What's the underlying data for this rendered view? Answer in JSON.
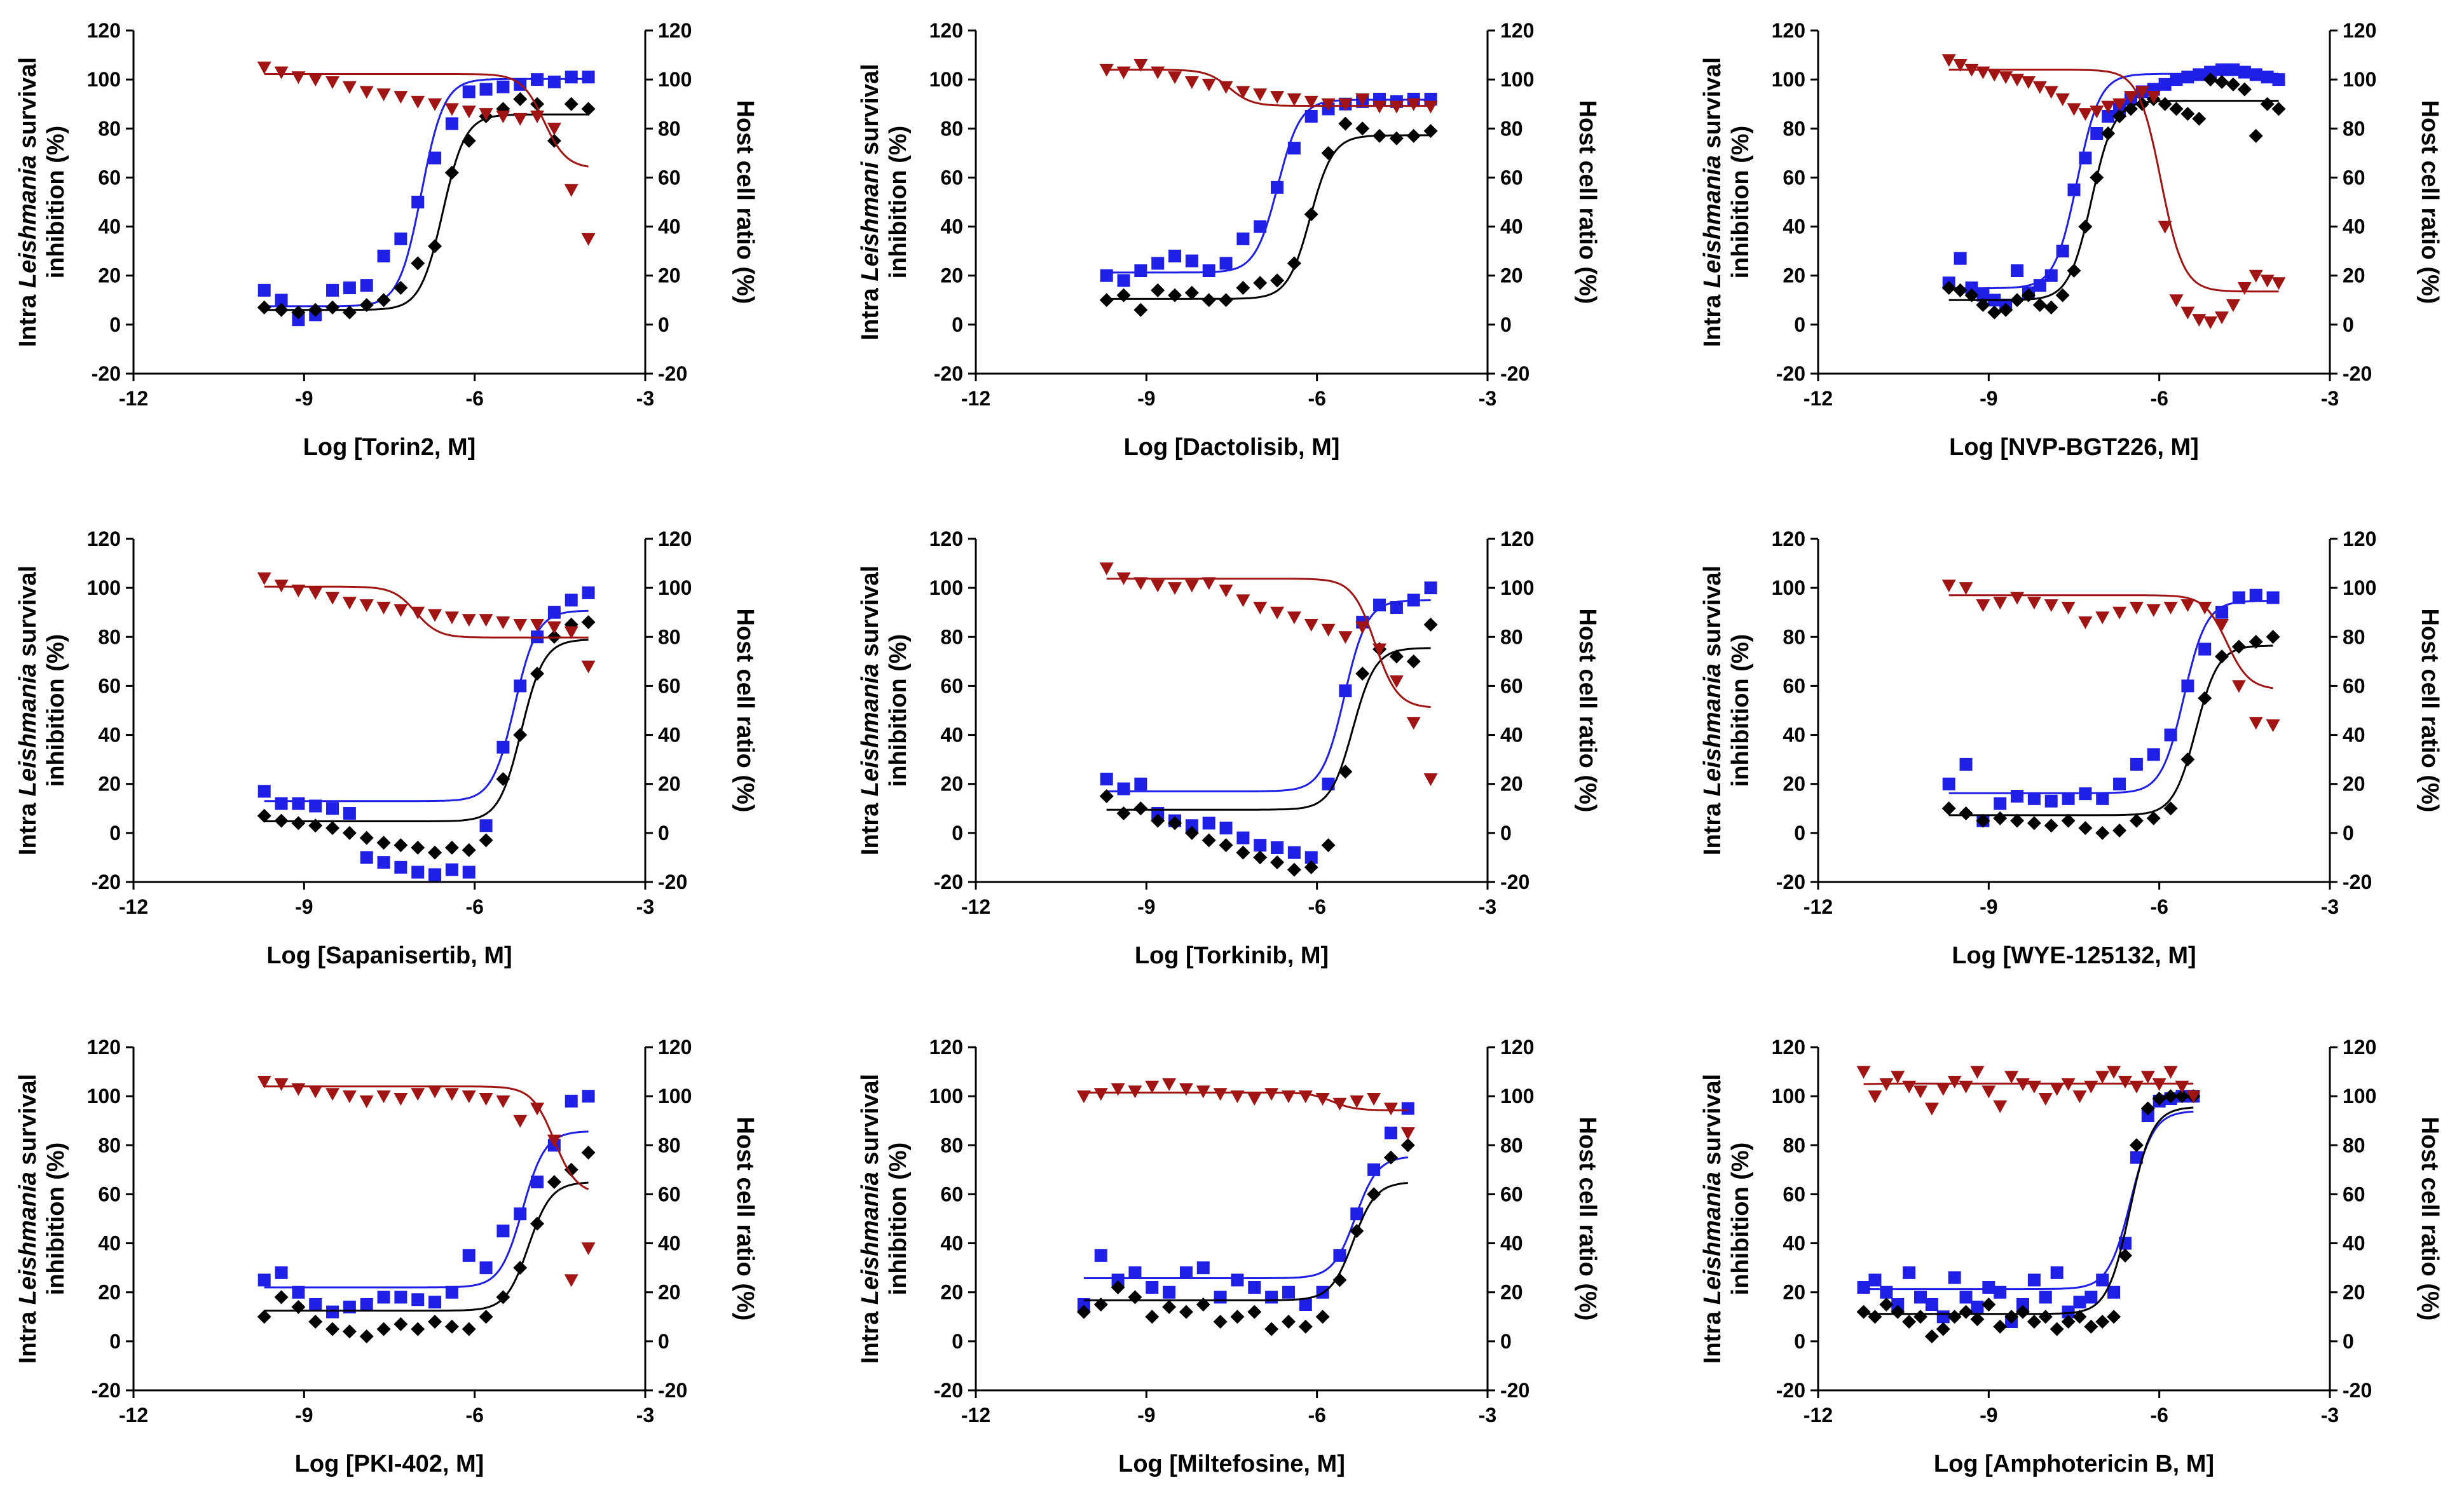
{
  "figure": {
    "colors": {
      "blue": "#1f1fe6",
      "black": "#000000",
      "red": "#a01414"
    },
    "left_axis": {
      "label_prefix": "Intra ",
      "label_italic": "Leishmania",
      "label_suffix": " survival",
      "label_line2": "inhibition (%)",
      "label_line2_alt": "Intra Leishmani survival"
    },
    "right_axis": {
      "label": "Host cell ratio (%)"
    },
    "x_ticks": [
      "-12",
      "-9",
      "-6",
      "-3"
    ],
    "y_ticks": [
      "-20",
      "0",
      "20",
      "40",
      "60",
      "80",
      "100",
      "120"
    ]
  },
  "chart_data": [
    {
      "type": "scatter",
      "xlabel": "Log [Torin2, M]",
      "ylabel": "Intra Leishmania survival inhibition (%)",
      "y2label": "Host cell ratio (%)",
      "xlim": [
        -12,
        -3
      ],
      "ylim": [
        -20,
        120
      ],
      "y2lim": [
        -20,
        120
      ],
      "x": [
        -9.7,
        -9.4,
        -9.1,
        -8.8,
        -8.5,
        -8.2,
        -7.9,
        -7.6,
        -7.3,
        -7.0,
        -6.7,
        -6.4,
        -6.1,
        -5.8,
        -5.5,
        -5.2,
        -4.9,
        -4.6,
        -4.3,
        -4.0
      ],
      "series": [
        {
          "color": "blue",
          "axis": "left",
          "values": [
            14,
            10,
            2,
            4,
            14,
            15,
            16,
            28,
            35,
            50,
            68,
            82,
            95,
            96,
            97,
            98,
            100,
            99,
            101,
            101
          ]
        },
        {
          "color": "black",
          "axis": "left",
          "values": [
            7,
            6,
            5,
            6,
            7,
            5,
            8,
            10,
            15,
            25,
            32,
            62,
            75,
            85,
            88,
            92,
            90,
            75,
            90,
            88
          ]
        },
        {
          "color": "red",
          "axis": "right",
          "values": [
            105,
            103,
            101,
            100,
            99,
            97,
            95,
            94,
            93,
            91,
            90,
            88,
            87,
            86,
            85,
            84,
            85,
            80,
            55,
            35
          ]
        }
      ]
    },
    {
      "type": "scatter",
      "xlabel": "Log [Dactolisib, M]",
      "ylabel": "Intra Leishmani survival inhibition (%)",
      "y2label": "Host cell ratio (%)",
      "xlim": [
        -12,
        -3
      ],
      "ylim": [
        -20,
        120
      ],
      "y2lim": [
        -20,
        120
      ],
      "x": [
        -9.7,
        -9.4,
        -9.1,
        -8.8,
        -8.5,
        -8.2,
        -7.9,
        -7.6,
        -7.3,
        -7.0,
        -6.7,
        -6.4,
        -6.1,
        -5.8,
        -5.5,
        -5.2,
        -4.9,
        -4.6,
        -4.3,
        -4.0
      ],
      "series": [
        {
          "color": "blue",
          "axis": "left",
          "values": [
            20,
            18,
            22,
            25,
            28,
            26,
            22,
            25,
            35,
            40,
            56,
            72,
            85,
            88,
            90,
            91,
            92,
            91,
            92,
            92
          ]
        },
        {
          "color": "black",
          "axis": "left",
          "values": [
            10,
            12,
            6,
            14,
            12,
            13,
            10,
            10,
            15,
            17,
            18,
            25,
            45,
            70,
            82,
            80,
            77,
            76,
            77,
            79
          ]
        },
        {
          "color": "red",
          "axis": "right",
          "values": [
            104,
            103,
            106,
            103,
            101,
            99,
            98,
            97,
            95,
            94,
            93,
            92,
            91,
            90,
            90,
            92,
            89,
            89,
            90,
            89
          ]
        }
      ]
    },
    {
      "type": "scatter",
      "xlabel": "Log [NVP-BGT226, M]",
      "ylabel": "Intra Leishmania survival inhibition (%)",
      "y2label": "Host cell ratio (%)",
      "xlim": [
        -12,
        -3
      ],
      "ylim": [
        -20,
        120
      ],
      "y2lim": [
        -20,
        120
      ],
      "x": [
        -9.7,
        -9.5,
        -9.3,
        -9.1,
        -8.9,
        -8.7,
        -8.5,
        -8.3,
        -8.1,
        -7.9,
        -7.7,
        -7.5,
        -7.3,
        -7.1,
        -6.9,
        -6.7,
        -6.5,
        -6.3,
        -6.1,
        -5.9,
        -5.7,
        -5.5,
        -5.3,
        -5.1,
        -4.9,
        -4.7,
        -4.5,
        -4.3,
        -4.1,
        -3.9
      ],
      "series": [
        {
          "color": "blue",
          "axis": "left",
          "values": [
            17,
            27,
            15,
            12,
            10,
            8,
            22,
            13,
            16,
            20,
            30,
            55,
            68,
            78,
            85,
            88,
            92,
            95,
            96,
            98,
            100,
            101,
            102,
            103,
            104,
            104,
            103,
            102,
            101,
            100
          ]
        },
        {
          "color": "black",
          "axis": "left",
          "values": [
            15,
            14,
            12,
            8,
            5,
            6,
            10,
            12,
            8,
            7,
            12,
            22,
            40,
            60,
            78,
            85,
            88,
            90,
            92,
            90,
            88,
            86,
            84,
            100,
            99,
            98,
            96,
            77,
            90,
            88
          ]
        },
        {
          "color": "red",
          "axis": "right",
          "values": [
            108,
            106,
            104,
            103,
            102,
            101,
            100,
            99,
            97,
            95,
            92,
            88,
            86,
            87,
            89,
            90,
            93,
            95,
            93,
            40,
            10,
            5,
            2,
            1,
            3,
            8,
            15,
            20,
            18,
            17
          ]
        }
      ]
    },
    {
      "type": "scatter",
      "xlabel": "Log [Sapanisertib, M]",
      "ylabel": "Intra Leishmania survival inhibition (%)",
      "y2label": "Host cell ratio (%)",
      "xlim": [
        -12,
        -3
      ],
      "ylim": [
        -20,
        120
      ],
      "y2lim": [
        -20,
        120
      ],
      "x": [
        -9.7,
        -9.4,
        -9.1,
        -8.8,
        -8.5,
        -8.2,
        -7.9,
        -7.6,
        -7.3,
        -7.0,
        -6.7,
        -6.4,
        -6.1,
        -5.8,
        -5.5,
        -5.2,
        -4.9,
        -4.6,
        -4.3,
        -4.0
      ],
      "series": [
        {
          "color": "blue",
          "axis": "left",
          "values": [
            17,
            12,
            12,
            11,
            10,
            8,
            -10,
            -12,
            -14,
            -16,
            -17,
            -15,
            -16,
            3,
            35,
            60,
            80,
            90,
            95,
            98
          ]
        },
        {
          "color": "black",
          "axis": "left",
          "values": [
            7,
            5,
            4,
            3,
            2,
            0,
            -2,
            -4,
            -5,
            -6,
            -8,
            -6,
            -7,
            -3,
            22,
            40,
            65,
            80,
            85,
            86
          ]
        },
        {
          "color": "red",
          "axis": "right",
          "values": [
            104,
            101,
            99,
            98,
            96,
            94,
            93,
            92,
            91,
            90,
            89,
            88,
            87,
            87,
            86,
            85,
            85,
            84,
            82,
            68
          ]
        }
      ]
    },
    {
      "type": "scatter",
      "xlabel": "Log [Torkinib, M]",
      "ylabel": "Intra Leishmania survival inhibition (%)",
      "y2label": "Host cell ratio (%)",
      "xlim": [
        -12,
        -3
      ],
      "ylim": [
        -20,
        120
      ],
      "y2lim": [
        -20,
        120
      ],
      "x": [
        -9.7,
        -9.4,
        -9.1,
        -8.8,
        -8.5,
        -8.2,
        -7.9,
        -7.6,
        -7.3,
        -7.0,
        -6.7,
        -6.4,
        -6.1,
        -5.8,
        -5.5,
        -5.2,
        -4.9,
        -4.6,
        -4.3,
        -4.0
      ],
      "series": [
        {
          "color": "blue",
          "axis": "left",
          "values": [
            22,
            18,
            20,
            8,
            5,
            3,
            4,
            2,
            -2,
            -5,
            -6,
            -8,
            -10,
            20,
            58,
            86,
            93,
            92,
            95,
            100
          ]
        },
        {
          "color": "black",
          "axis": "left",
          "values": [
            15,
            8,
            10,
            5,
            4,
            0,
            -3,
            -5,
            -8,
            -10,
            -12,
            -15,
            -14,
            -5,
            25,
            65,
            75,
            72,
            70,
            85
          ]
        },
        {
          "color": "red",
          "axis": "right",
          "values": [
            108,
            104,
            102,
            101,
            100,
            101,
            102,
            99,
            95,
            92,
            90,
            88,
            85,
            83,
            80,
            84,
            75,
            62,
            45,
            22
          ]
        }
      ]
    },
    {
      "type": "scatter",
      "xlabel": "Log [WYE-125132, M]",
      "ylabel": "Intra Leishmania survival inhibition (%)",
      "y2label": "Host cell ratio (%)",
      "xlim": [
        -12,
        -3
      ],
      "ylim": [
        -20,
        120
      ],
      "y2lim": [
        -20,
        120
      ],
      "x": [
        -9.7,
        -9.4,
        -9.1,
        -8.8,
        -8.5,
        -8.2,
        -7.9,
        -7.6,
        -7.3,
        -7.0,
        -6.7,
        -6.4,
        -6.1,
        -5.8,
        -5.5,
        -5.2,
        -4.9,
        -4.6,
        -4.3,
        -4.0
      ],
      "series": [
        {
          "color": "blue",
          "axis": "left",
          "values": [
            20,
            28,
            5,
            12,
            15,
            14,
            13,
            14,
            16,
            14,
            20,
            28,
            32,
            40,
            60,
            75,
            90,
            96,
            97,
            96
          ]
        },
        {
          "color": "black",
          "axis": "left",
          "values": [
            10,
            8,
            5,
            6,
            5,
            4,
            3,
            5,
            2,
            0,
            1,
            5,
            6,
            10,
            30,
            55,
            72,
            76,
            78,
            80
          ]
        },
        {
          "color": "red",
          "axis": "right",
          "values": [
            101,
            100,
            93,
            94,
            96,
            94,
            93,
            92,
            86,
            88,
            90,
            92,
            91,
            92,
            93,
            92,
            85,
            60,
            45,
            44
          ]
        }
      ]
    },
    {
      "type": "scatter",
      "xlabel": "Log [PKI-402, M]",
      "ylabel": "Intra Leishmania survival inhibition (%)",
      "y2label": "Host cell ratio (%)",
      "xlim": [
        -12,
        -3
      ],
      "ylim": [
        -20,
        120
      ],
      "y2lim": [
        -20,
        120
      ],
      "x": [
        -9.7,
        -9.4,
        -9.1,
        -8.8,
        -8.5,
        -8.2,
        -7.9,
        -7.6,
        -7.3,
        -7.0,
        -6.7,
        -6.4,
        -6.1,
        -5.8,
        -5.5,
        -5.2,
        -4.9,
        -4.6,
        -4.3,
        -4.0
      ],
      "series": [
        {
          "color": "blue",
          "axis": "left",
          "values": [
            25,
            28,
            20,
            15,
            12,
            14,
            15,
            18,
            18,
            17,
            16,
            20,
            35,
            30,
            45,
            52,
            65,
            80,
            98,
            100
          ]
        },
        {
          "color": "black",
          "axis": "left",
          "values": [
            10,
            18,
            14,
            8,
            5,
            4,
            2,
            5,
            7,
            5,
            8,
            6,
            5,
            10,
            18,
            30,
            48,
            65,
            70,
            77
          ]
        },
        {
          "color": "red",
          "axis": "right",
          "values": [
            106,
            105,
            103,
            102,
            101,
            100,
            98,
            100,
            99,
            101,
            102,
            101,
            100,
            99,
            98,
            90,
            95,
            82,
            25,
            38
          ]
        }
      ]
    },
    {
      "type": "scatter",
      "xlabel": "Log [Miltefosine, M]",
      "ylabel": "Intra Leishmania survival inhibition (%)",
      "y2label": "Host cell ratio (%)",
      "xlim": [
        -12,
        -3
      ],
      "ylim": [
        -20,
        120
      ],
      "y2lim": [
        -20,
        120
      ],
      "x": [
        -10.1,
        -9.8,
        -9.5,
        -9.2,
        -8.9,
        -8.6,
        -8.3,
        -8.0,
        -7.7,
        -7.4,
        -7.1,
        -6.8,
        -6.5,
        -6.2,
        -5.9,
        -5.6,
        -5.3,
        -5.0,
        -4.7,
        -4.4
      ],
      "series": [
        {
          "color": "blue",
          "axis": "left",
          "values": [
            15,
            35,
            25,
            28,
            22,
            20,
            28,
            30,
            18,
            25,
            22,
            18,
            20,
            15,
            20,
            35,
            52,
            70,
            85,
            95
          ]
        },
        {
          "color": "black",
          "axis": "left",
          "values": [
            12,
            15,
            22,
            18,
            10,
            14,
            12,
            15,
            8,
            10,
            12,
            5,
            8,
            6,
            10,
            25,
            45,
            60,
            75,
            80
          ]
        },
        {
          "color": "red",
          "axis": "right",
          "values": [
            100,
            101,
            103,
            102,
            104,
            105,
            103,
            102,
            101,
            100,
            99,
            101,
            100,
            100,
            99,
            97,
            98,
            99,
            95,
            85
          ]
        }
      ]
    },
    {
      "type": "scatter",
      "xlabel": "Log [Amphotericin B, M]",
      "ylabel": "Intra Leishmania survival inhibition (%)",
      "y2label": "Host cell ratio (%)",
      "xlim": [
        -12,
        -3
      ],
      "ylim": [
        -20,
        120
      ],
      "y2lim": [
        -20,
        120
      ],
      "x": [
        -11.2,
        -11.0,
        -10.8,
        -10.6,
        -10.4,
        -10.2,
        -10.0,
        -9.8,
        -9.6,
        -9.4,
        -9.2,
        -9.0,
        -8.8,
        -8.6,
        -8.4,
        -8.2,
        -8.0,
        -7.8,
        -7.6,
        -7.4,
        -7.2,
        -7.0,
        -6.8,
        -6.6,
        -6.4,
        -6.2,
        -6.0,
        -5.8,
        -5.6,
        -5.4
      ],
      "series": [
        {
          "color": "blue",
          "axis": "left",
          "values": [
            22,
            25,
            20,
            15,
            28,
            18,
            15,
            10,
            26,
            18,
            14,
            22,
            20,
            8,
            15,
            25,
            18,
            28,
            12,
            16,
            18,
            25,
            20,
            40,
            75,
            92,
            98,
            99,
            100,
            100
          ]
        },
        {
          "color": "black",
          "axis": "left",
          "values": [
            12,
            10,
            15,
            12,
            8,
            10,
            2,
            5,
            10,
            12,
            9,
            15,
            6,
            10,
            12,
            8,
            10,
            5,
            8,
            10,
            6,
            8,
            10,
            35,
            80,
            95,
            99,
            100,
            100,
            100
          ]
        },
        {
          "color": "red",
          "axis": "right",
          "values": [
            110,
            100,
            105,
            108,
            104,
            102,
            95,
            103,
            106,
            104,
            110,
            102,
            96,
            108,
            105,
            104,
            99,
            103,
            105,
            100,
            104,
            108,
            110,
            106,
            104,
            108,
            105,
            110,
            104,
            100
          ]
        }
      ]
    }
  ]
}
